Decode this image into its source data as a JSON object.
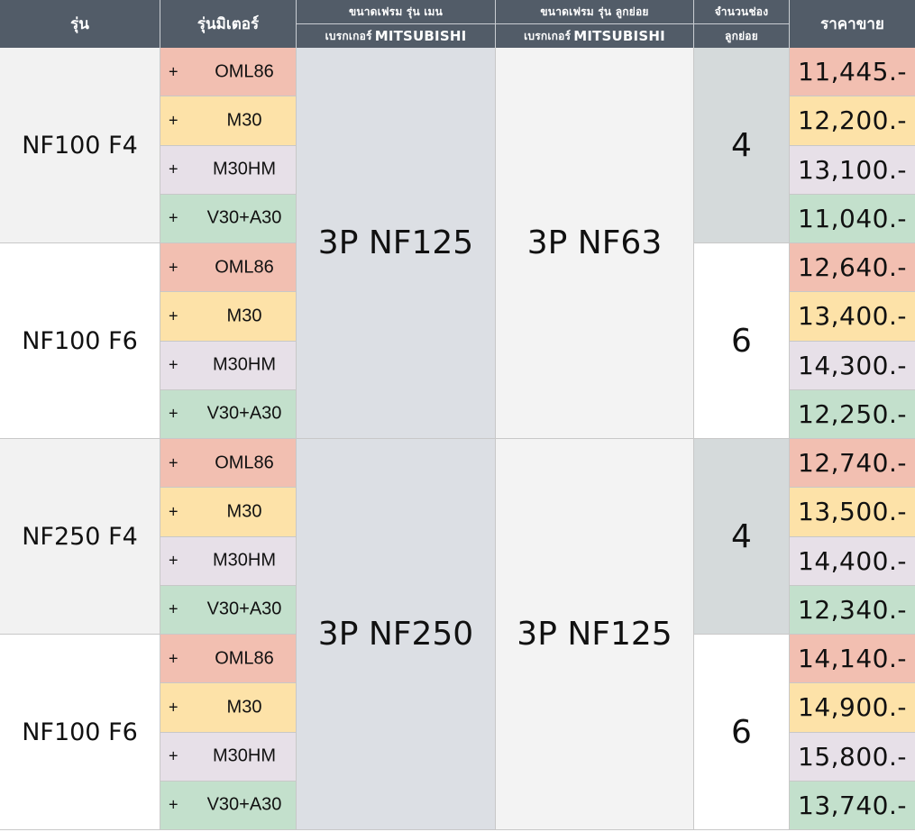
{
  "header": {
    "model": "รุ่น",
    "meter": "รุ่นมิเตอร์",
    "main_frame_line1": "ขนาดเฟรม รุ่น เมน",
    "main_frame_prefix": "เบรกเกอร์",
    "main_frame_brand": "MITSUBISHI",
    "sub_frame_line1": "ขนาดเฟรม รุ่น ลูกย่อย",
    "sub_frame_prefix": "เบรกเกอร์",
    "sub_frame_brand": "MITSUBISHI",
    "slots_line1": "จำนวนช่อง",
    "slots_line2": "ลูกย่อย",
    "price": "ราคาขาย"
  },
  "meter_plus": "+",
  "meter_colors": {
    "OML86": "#f2bfb1",
    "M30": "#fde2a8",
    "M30HM": "#e7e0e8",
    "V30+A30": "#c3e0cc"
  },
  "groups": [
    {
      "main_frame": "3P NF125",
      "sub_frame": "3P NF63",
      "models": [
        {
          "name": "NF100 F4",
          "slots": "4",
          "rows": [
            {
              "meter": "OML86",
              "price": "11,445.-"
            },
            {
              "meter": "M30",
              "price": "12,200.-"
            },
            {
              "meter": "M30HM",
              "price": "13,100.-"
            },
            {
              "meter": "V30+A30",
              "price": "11,040.-"
            }
          ]
        },
        {
          "name": "NF100 F6",
          "slots": "6",
          "rows": [
            {
              "meter": "OML86",
              "price": "12,640.-"
            },
            {
              "meter": "M30",
              "price": "13,400.-"
            },
            {
              "meter": "M30HM",
              "price": "14,300.-"
            },
            {
              "meter": "V30+A30",
              "price": "12,250.-"
            }
          ]
        }
      ]
    },
    {
      "main_frame": "3P NF250",
      "sub_frame": "3P NF125",
      "models": [
        {
          "name": "NF250 F4",
          "slots": "4",
          "rows": [
            {
              "meter": "OML86",
              "price": "12,740.-"
            },
            {
              "meter": "M30",
              "price": "13,500.-"
            },
            {
              "meter": "M30HM",
              "price": "14,400.-"
            },
            {
              "meter": "V30+A30",
              "price": "12,340.-"
            }
          ]
        },
        {
          "name": "NF100 F6",
          "slots": "6",
          "rows": [
            {
              "meter": "OML86",
              "price": "14,140.-"
            },
            {
              "meter": "M30",
              "price": "14,900.-"
            },
            {
              "meter": "M30HM",
              "price": "15,800.-"
            },
            {
              "meter": "V30+A30",
              "price": "13,740.-"
            }
          ]
        }
      ]
    }
  ]
}
